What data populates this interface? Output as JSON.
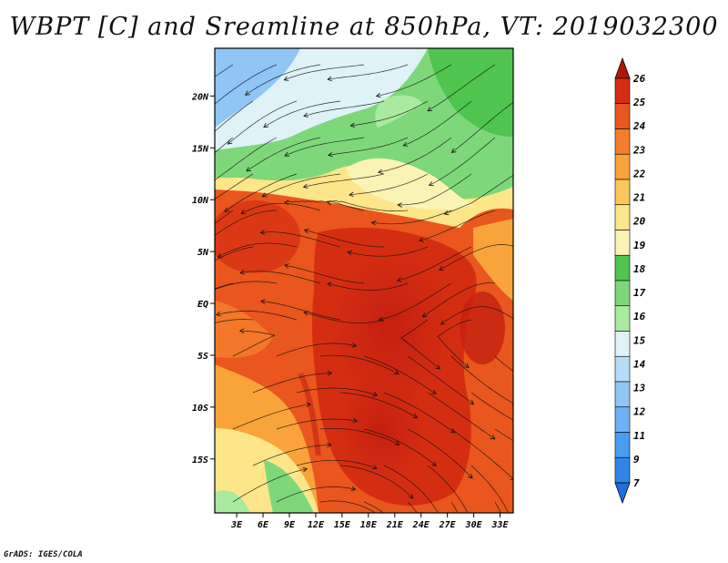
{
  "title": "WBPT [C] and Sreamline at 850hPa, VT: 2019032300",
  "footer": "GrADS: IGES/COLA",
  "map": {
    "lat_labels": [
      "20N",
      "15N",
      "10N",
      "5N",
      "EQ",
      "5S",
      "10S",
      "15S"
    ],
    "lat_values": [
      20,
      15,
      10,
      5,
      0,
      -5,
      -10,
      -15
    ],
    "lon_labels": [
      "3E",
      "6E",
      "9E",
      "12E",
      "15E",
      "18E",
      "21E",
      "24E",
      "27E",
      "30E",
      "33E"
    ],
    "lon_values": [
      3,
      6,
      9,
      12,
      15,
      18,
      21,
      24,
      27,
      30,
      33
    ],
    "lon_range": [
      0.5,
      34.5
    ],
    "lat_range": [
      -20.2,
      24.6
    ]
  },
  "colorbar": {
    "labels": [
      "7",
      "9",
      "11",
      "12",
      "13",
      "14",
      "15",
      "16",
      "17",
      "18",
      "19",
      "20",
      "21",
      "22",
      "23",
      "24",
      "25",
      "26"
    ],
    "colors": [
      "#1e6fe0",
      "#2f86e8",
      "#4a9cf0",
      "#6cb2f4",
      "#8fc6f6",
      "#b6dcf8",
      "#dff2f8",
      "#aaeaa0",
      "#7ed87a",
      "#4fc44f",
      "#fbf3b4",
      "#fde58a",
      "#fbc65a",
      "#f9a43a",
      "#f47f2a",
      "#e9561e",
      "#d42e12",
      "#b01808"
    ]
  }
}
